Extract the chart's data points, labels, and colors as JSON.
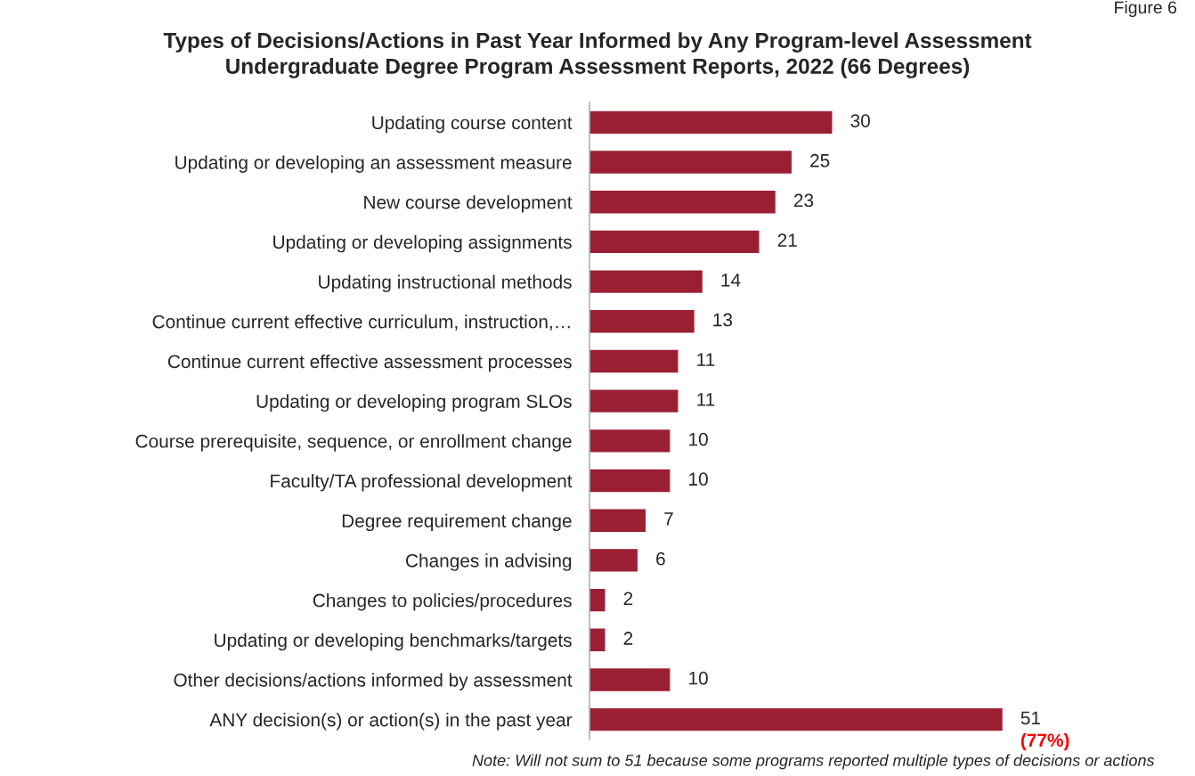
{
  "chart_data": {
    "type": "bar",
    "orientation": "horizontal",
    "title": "Types of Decisions/Actions in Past Year Informed by Any Program-level Assessment\nUndergraduate Degree Program Assessment Reports, 2022 (66 Degrees)",
    "categories": [
      "Updating course content",
      "Updating or developing an assessment measure",
      "New course development",
      "Updating or developing assignments",
      "Updating instructional methods",
      "Continue current effective curriculum, instruction,…",
      "Continue current effective assessment processes",
      "Updating or developing program SLOs",
      "Course prerequisite, sequence, or enrollment change",
      "Faculty/TA professional development",
      "Degree requirement change",
      "Changes in advising",
      "Changes to policies/procedures",
      "Updating or developing benchmarks/targets",
      "Other decisions/actions informed by assessment",
      "ANY decision(s) or action(s) in the past year"
    ],
    "values": [
      30,
      25,
      23,
      21,
      14,
      13,
      11,
      11,
      10,
      10,
      7,
      6,
      2,
      2,
      10,
      51
    ],
    "color": "#9b1f33",
    "data_labels": true,
    "grid": false,
    "legend": false,
    "annotations": [
      {
        "text": "(77%)",
        "x": 51,
        "y": "ANY decision(s) or action(s) in the past year"
      },
      "Note: Will not sum to 51 because some programs reported multiple types of decisions or actions",
      "Figure 6"
    ]
  }
}
